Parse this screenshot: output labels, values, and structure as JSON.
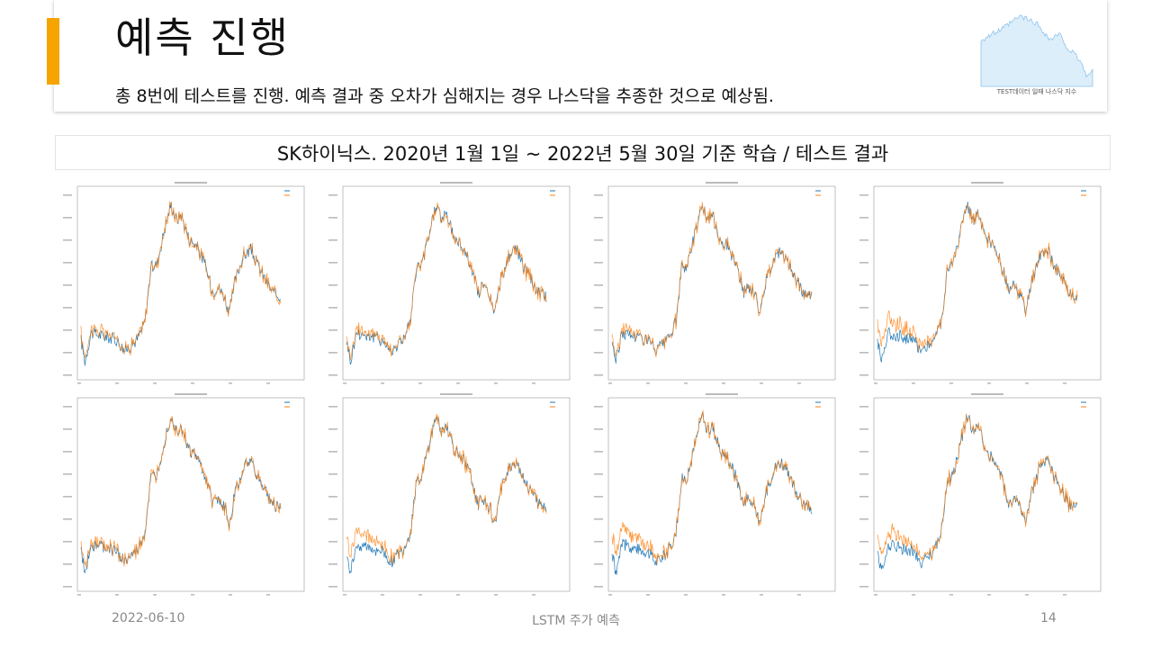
{
  "header": {
    "title": "예측 진행",
    "subtitle": "총 8번에 테스트를 진행. 예측 결과 중 오차가 심해지는 경우 나스닥을 추종한 것으로 예상됨.",
    "accent_color": "#f5a400"
  },
  "thumbnail": {
    "caption": "TEST데이터 일때 나스닥 지수",
    "fill_color": "#dceefa",
    "line_color": "#8fc3ec"
  },
  "section": {
    "title": "SK하이닉스. 2020년 1월 1일 ~ 2022년 5월 30일 기준 학습 / 테스트 결과"
  },
  "charts": [
    {
      "id": 1,
      "real_color": "#1f77b4",
      "pred_color": "#ff7f0e"
    },
    {
      "id": 2,
      "real_color": "#1f77b4",
      "pred_color": "#ff7f0e"
    },
    {
      "id": 3,
      "real_color": "#1f77b4",
      "pred_color": "#ff7f0e"
    },
    {
      "id": 4,
      "real_color": "#1f77b4",
      "pred_color": "#ff7f0e"
    },
    {
      "id": 5,
      "real_color": "#1f77b4",
      "pred_color": "#ff7f0e"
    },
    {
      "id": 6,
      "real_color": "#1f77b4",
      "pred_color": "#ff7f0e"
    },
    {
      "id": 7,
      "real_color": "#1f77b4",
      "pred_color": "#ff7f0e"
    },
    {
      "id": 8,
      "real_color": "#1f77b4",
      "pred_color": "#ff7f0e"
    }
  ],
  "footer": {
    "date": "2022-06-10",
    "center": "LSTM 주가 예측",
    "page": "14"
  }
}
